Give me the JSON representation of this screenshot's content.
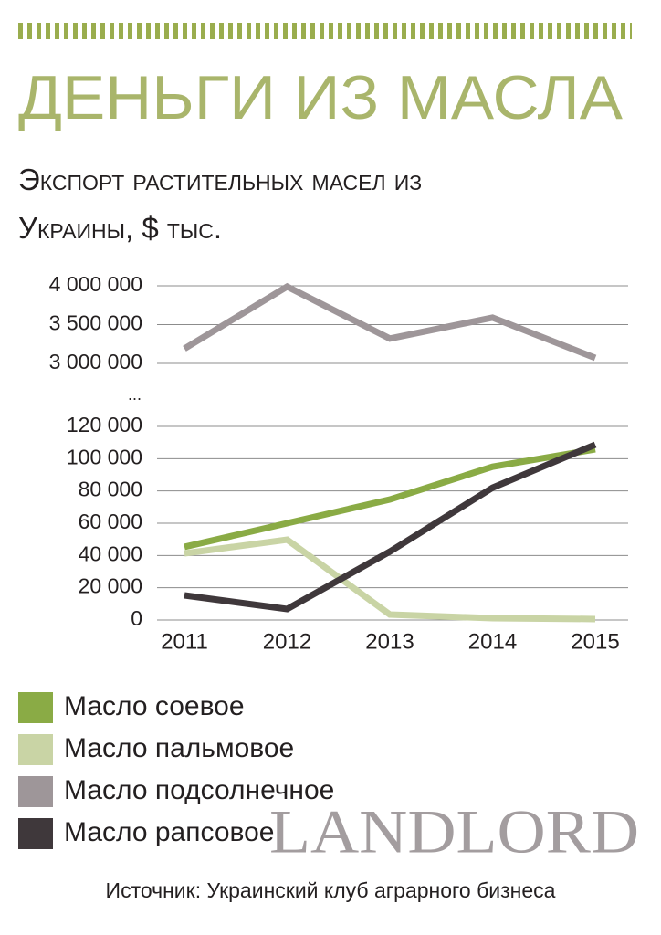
{
  "title": "ДЕНЬГИ ИЗ МАСЛА",
  "subtitle": "Экспорт растительных масел из Украины, $ тыс.",
  "axis_break": "...",
  "source": "Источник:  Украинский клуб аграрного бизнеса",
  "watermark": "LANDLORD",
  "chart_data": [
    {
      "type": "line",
      "series": [
        {
          "name": "Масло подсолнечное",
          "color": "#9e9699",
          "values": [
            3190000,
            3990000,
            3320000,
            3590000,
            3070000
          ]
        }
      ],
      "ylim": [
        3000000,
        4000000
      ],
      "yticks": [
        {
          "value": 3000000,
          "label": "3 000 000"
        },
        {
          "value": 3500000,
          "label": "3 500 000"
        },
        {
          "value": 4000000,
          "label": "4 000 000"
        }
      ],
      "grid": true
    },
    {
      "type": "line",
      "categories": [
        "2011",
        "2012",
        "2013",
        "2014",
        "2015"
      ],
      "series": [
        {
          "name": "Масло соевое",
          "color": "#8aab45",
          "values": [
            45300,
            60000,
            74700,
            95000,
            105800
          ]
        },
        {
          "name": "Масло пальмовое",
          "color": "#c9d4a5",
          "values": [
            41300,
            49800,
            3400,
            1100,
            600
          ]
        },
        {
          "name": "Масло рапсовое",
          "color": "#3f383b",
          "values": [
            15300,
            6800,
            42400,
            82000,
            108700
          ]
        }
      ],
      "ylim": [
        0,
        120000
      ],
      "yticks": [
        0,
        {
          "value": 20000,
          "label": "20 000"
        },
        {
          "value": 40000,
          "label": "40 000"
        },
        {
          "value": 60000,
          "label": "60 000"
        },
        {
          "value": 80000,
          "label": "80 000"
        },
        {
          "value": 100000,
          "label": "100 000"
        },
        {
          "value": 120000,
          "label": "120 000"
        }
      ],
      "grid": true
    }
  ]
}
